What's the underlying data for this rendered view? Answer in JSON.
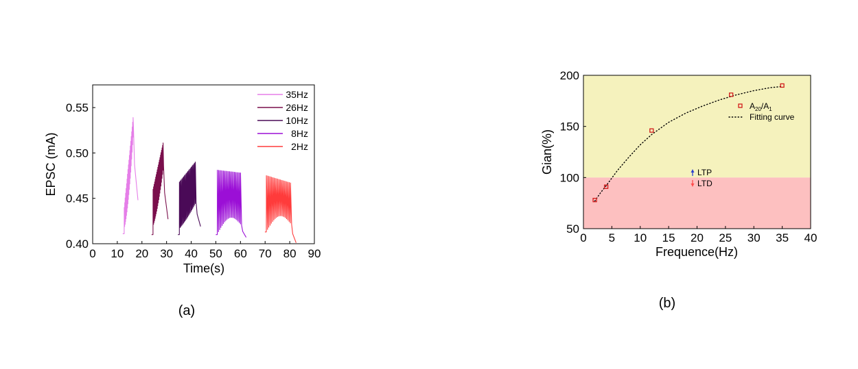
{
  "chart_data": [
    {
      "type": "line",
      "panel_label": "(a)",
      "xlabel": "Time(s)",
      "ylabel": "EPSC (mA)",
      "xlim": [
        0,
        90
      ],
      "ylim": [
        0.4,
        0.575
      ],
      "xticks": [
        "0",
        "10",
        "20",
        "30",
        "40",
        "50",
        "60",
        "70",
        "80",
        "90"
      ],
      "yticks": [
        "0.40",
        "0.45",
        "0.50",
        "0.55"
      ],
      "legend_position": "top-right",
      "series": [
        {
          "name": "35Hz",
          "color": "#e57ee8",
          "start": 12.8,
          "end": 16.6,
          "pulses": 20,
          "baseline": 0.411,
          "peak_start": 0.44,
          "peak_end": 0.539,
          "tail": 0.448
        },
        {
          "name": "26Hz",
          "color": "#7a0f4c",
          "start": 24.5,
          "end": 28.8,
          "pulses": 20,
          "baseline": 0.41,
          "peak_start": 0.46,
          "peak_end": 0.511,
          "tail": 0.427
        },
        {
          "name": "10Hz",
          "color": "#4a0a57",
          "start": 35.2,
          "end": 42.0,
          "pulses": 20,
          "baseline": 0.41,
          "peak_start": 0.468,
          "peak_end": 0.49,
          "tail": 0.419
        },
        {
          "name": "8Hz",
          "color": "#9b0fd6",
          "start": 50.6,
          "end": 60.5,
          "pulses": 20,
          "baseline": 0.41,
          "peak_start": 0.481,
          "peak_end": 0.478,
          "tail": 0.407
        },
        {
          "name": "2Hz",
          "color": "#ff3b3b",
          "start": 70.5,
          "end": 80.8,
          "pulses": 20,
          "baseline": 0.413,
          "peak_start": 0.475,
          "peak_end": 0.467,
          "tail": 0.401
        }
      ]
    },
    {
      "type": "scatter",
      "panel_label": "(b)",
      "xlabel": "Frequence(Hz)",
      "ylabel": "Gian(%)",
      "xlim": [
        0,
        40
      ],
      "ylim": [
        50,
        200
      ],
      "xticks": [
        "0",
        "5",
        "10",
        "15",
        "20",
        "25",
        "30",
        "35",
        "40"
      ],
      "yticks": [
        "50",
        "100",
        "150",
        "200"
      ],
      "regions": [
        {
          "label": "LTP",
          "from": 100,
          "to": 200,
          "color": "#f5f2bd",
          "arrow_color": "#2a3fcf"
        },
        {
          "label": "LTD",
          "from": 50,
          "to": 100,
          "color": "#fdc0c0",
          "arrow_color": "#ff4b4b"
        }
      ],
      "points": {
        "name_main": "A",
        "name_sub1": "20",
        "name_sep": "/A",
        "name_sub2": "1",
        "color": "#d11a1a",
        "x": [
          2,
          4,
          12,
          26,
          35
        ],
        "y": [
          78,
          91,
          146,
          181,
          190
        ]
      },
      "fit": {
        "name": "Fitting curve",
        "x": [
          2,
          3,
          4,
          6,
          8,
          10,
          12,
          15,
          18,
          21,
          24,
          27,
          30,
          33,
          35
        ],
        "y": [
          77,
          85,
          92,
          107,
          120,
          132,
          142,
          154,
          163,
          170,
          176,
          181,
          185,
          188,
          189
        ]
      }
    }
  ]
}
